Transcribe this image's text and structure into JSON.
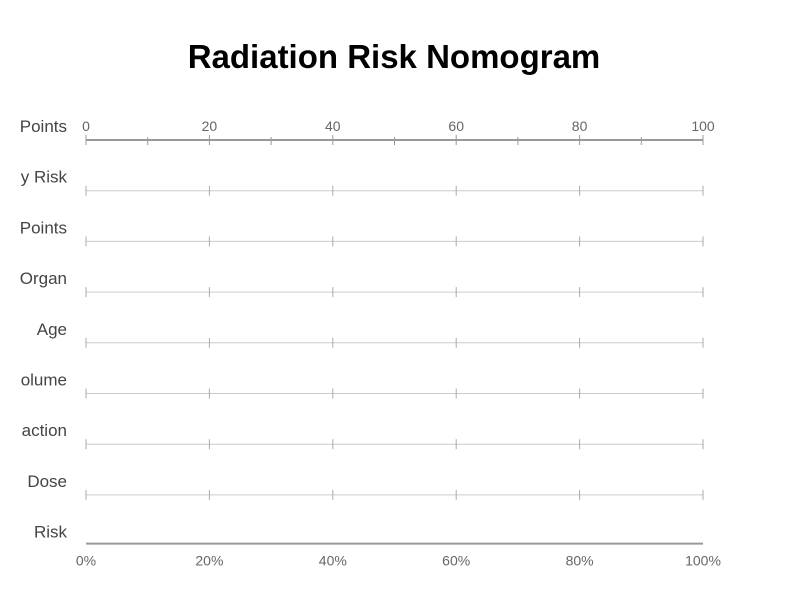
{
  "chart_data": {
    "type": "nomogram",
    "title": "Radiation Risk Nomogram",
    "rows": [
      {
        "label": "Points",
        "axis": "points"
      },
      {
        "label": "y Risk",
        "axis": "scale"
      },
      {
        "label": "Points",
        "axis": "scale"
      },
      {
        "label": "Organ",
        "axis": "scale"
      },
      {
        "label": "Age",
        "axis": "scale"
      },
      {
        "label": "olume",
        "axis": "scale"
      },
      {
        "label": "action",
        "axis": "scale"
      },
      {
        "label": "Dose",
        "axis": "scale"
      },
      {
        "label": "Risk",
        "axis": "probability"
      }
    ],
    "points_axis": {
      "range": [
        0,
        100
      ],
      "major_ticks": [
        0,
        20,
        40,
        60,
        80,
        100
      ],
      "minor_ticks": [
        10,
        30,
        50,
        70,
        90
      ],
      "tick_labels": [
        "0",
        "20",
        "40",
        "60",
        "80",
        "100"
      ]
    },
    "scale_ticks": [
      0,
      20,
      40,
      60,
      80,
      100
    ],
    "probability_axis": {
      "range": [
        0,
        100
      ],
      "major_ticks": [
        0,
        20,
        40,
        60,
        80,
        100
      ],
      "tick_labels": [
        "0%",
        "20%",
        "40%",
        "60%",
        "80%",
        "100%"
      ]
    },
    "colors": {
      "axis_line": "#999999",
      "scale_line": "#cccccc",
      "tick": "#aaaaaa",
      "label_text": "#444444",
      "tick_text": "#666666",
      "title_text": "#000000"
    }
  }
}
